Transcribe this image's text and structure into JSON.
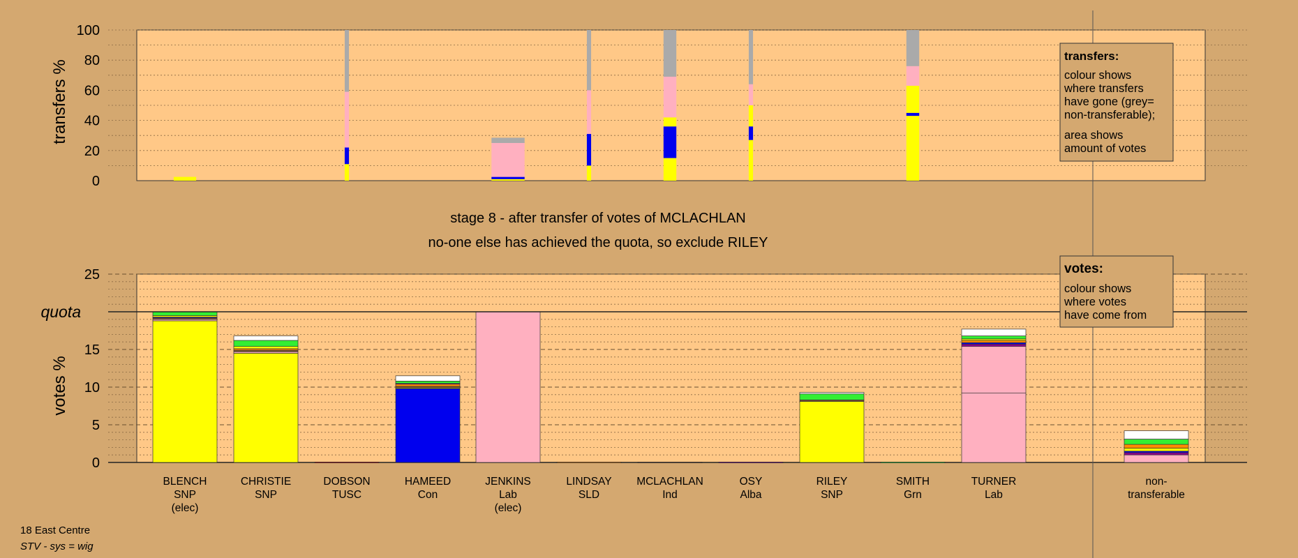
{
  "chart_data": {
    "type": "bar",
    "title": "stage 8 - after transfer of votes of MCLACHLAN",
    "subtitle": "no-one else has achieved the quota, so exclude RILEY",
    "candidates": [
      {
        "name": "BLENCH",
        "party": "SNP",
        "note": "(elec)"
      },
      {
        "name": "CHRISTIE",
        "party": "SNP",
        "note": ""
      },
      {
        "name": "DOBSON",
        "party": "TUSC",
        "note": ""
      },
      {
        "name": "HAMEED",
        "party": "Con",
        "note": ""
      },
      {
        "name": "JENKINS",
        "party": "Lab",
        "note": "(elec)"
      },
      {
        "name": "LINDSAY",
        "party": "SLD",
        "note": ""
      },
      {
        "name": "MCLACHLAN",
        "party": "Ind",
        "note": ""
      },
      {
        "name": "OSY",
        "party": "Alba",
        "note": ""
      },
      {
        "name": "RILEY",
        "party": "SNP",
        "note": ""
      },
      {
        "name": "SMITH",
        "party": "Grn",
        "note": ""
      },
      {
        "name": "TURNER",
        "party": "Lab",
        "note": ""
      }
    ],
    "nontransferable_label": [
      "non-",
      "transferable"
    ],
    "colors": {
      "SNP": "#ffff00",
      "Con": "#0000ee",
      "Lab": "#ffb0c0",
      "Grn": "#33ee33",
      "SLD": "#ff8c00",
      "Ind": "#7a5230",
      "Alba": "#8b008b",
      "TUSC": "#cc0000",
      "nontransferable": "#aaaaaa",
      "other": "#ffffff"
    },
    "transfers_panel": {
      "ylabel": "transfers %",
      "ylim": [
        0,
        100
      ],
      "ticks": [
        0,
        20,
        40,
        60,
        80,
        100
      ],
      "bars": [
        {
          "candidate": 0,
          "width_pct": 2.1,
          "segments": [
            {
              "party": "SNP",
              "value": 2.5
            }
          ]
        },
        {
          "candidate": 2,
          "width_pct": 0.4,
          "segments": [
            {
              "party": "SNP",
              "value": 11
            },
            {
              "party": "Con",
              "value": 11
            },
            {
              "party": "Lab",
              "value": 37
            },
            {
              "party": "nontransferable",
              "value": 41
            }
          ]
        },
        {
          "candidate": 4,
          "width_pct": 3.1,
          "segments": [
            {
              "party": "SNP",
              "value": 1
            },
            {
              "party": "Con",
              "value": 1.5
            },
            {
              "party": "Lab",
              "value": 22.5
            },
            {
              "party": "nontransferable",
              "value": 3.5
            }
          ]
        },
        {
          "candidate": 5,
          "width_pct": 0.4,
          "segments": [
            {
              "party": "SNP",
              "value": 10
            },
            {
              "party": "Con",
              "value": 21
            },
            {
              "party": "Lab",
              "value": 29
            },
            {
              "party": "nontransferable",
              "value": 40
            }
          ]
        },
        {
          "candidate": 6,
          "width_pct": 1.2,
          "segments": [
            {
              "party": "SNP",
              "value": 15
            },
            {
              "party": "Con",
              "value": 21
            },
            {
              "party": "SNP",
              "value": 6
            },
            {
              "party": "Lab",
              "value": 27
            },
            {
              "party": "nontransferable",
              "value": 31
            }
          ]
        },
        {
          "candidate": 7,
          "width_pct": 0.4,
          "segments": [
            {
              "party": "SNP",
              "value": 27
            },
            {
              "party": "Con",
              "value": 9
            },
            {
              "party": "SNP",
              "value": 14
            },
            {
              "party": "Lab",
              "value": 14
            },
            {
              "party": "nontransferable",
              "value": 36
            }
          ]
        },
        {
          "candidate": 9,
          "width_pct": 1.2,
          "segments": [
            {
              "party": "SNP",
              "value": 43
            },
            {
              "party": "Con",
              "value": 2
            },
            {
              "party": "SNP",
              "value": 18
            },
            {
              "party": "Lab",
              "value": 13
            },
            {
              "party": "nontransferable",
              "value": 24
            }
          ]
        }
      ]
    },
    "votes_panel": {
      "ylabel": "votes %",
      "ylim": [
        0,
        25
      ],
      "ticks": [
        0,
        5,
        10,
        15,
        20,
        25
      ],
      "quota": 20,
      "quota_label": "quota",
      "bars": [
        {
          "candidate": 0,
          "segments": [
            {
              "party": "SNP",
              "value": 18.8
            },
            {
              "party": "Lab",
              "value": 0.2
            },
            {
              "party": "Ind",
              "value": 0.2
            },
            {
              "party": "Con",
              "value": 0.1
            },
            {
              "party": "SNP",
              "value": 0.2
            },
            {
              "party": "Grn",
              "value": 0.5
            }
          ]
        },
        {
          "candidate": 1,
          "segments": [
            {
              "party": "SNP",
              "value": 14.5
            },
            {
              "party": "Lab",
              "value": 0.2
            },
            {
              "party": "Ind",
              "value": 0.2
            },
            {
              "party": "SLD",
              "value": 0.2
            },
            {
              "party": "SNP",
              "value": 0.3
            },
            {
              "party": "Grn",
              "value": 0.8
            },
            {
              "party": "other",
              "value": 0.6
            }
          ]
        },
        {
          "candidate": 2,
          "segments": [
            {
              "party": "TUSC",
              "value": 0.05
            }
          ]
        },
        {
          "candidate": 3,
          "segments": [
            {
              "party": "Con",
              "value": 9.8
            },
            {
              "party": "SNP",
              "value": 0.1
            },
            {
              "party": "Ind",
              "value": 0.2
            },
            {
              "party": "SLD",
              "value": 0.3
            },
            {
              "party": "Alba",
              "value": 0.1
            },
            {
              "party": "Grn",
              "value": 0.3
            },
            {
              "party": "other",
              "value": 0.7
            }
          ]
        },
        {
          "candidate": 4,
          "segments": [
            {
              "party": "Lab",
              "value": 20
            }
          ]
        },
        {
          "candidate": 5,
          "segments": [
            {
              "party": "SLD",
              "value": 0.05
            }
          ]
        },
        {
          "candidate": 6,
          "segments": [
            {
              "party": "Ind",
              "value": 0.05
            }
          ]
        },
        {
          "candidate": 7,
          "segments": [
            {
              "party": "Alba",
              "value": 0.05
            }
          ]
        },
        {
          "candidate": 8,
          "segments": [
            {
              "party": "SNP",
              "value": 8.1
            },
            {
              "party": "Ind",
              "value": 0.2
            },
            {
              "party": "Grn",
              "value": 0.8
            },
            {
              "party": "other",
              "value": 0.2
            }
          ]
        },
        {
          "candidate": 9,
          "segments": [
            {
              "party": "Grn",
              "value": 0.05
            }
          ]
        },
        {
          "candidate": 10,
          "segments": [
            {
              "party": "Lab",
              "value": 9.2
            },
            {
              "party": "Lab",
              "value": 6.2
            },
            {
              "party": "Alba",
              "value": 0.3
            },
            {
              "party": "Con",
              "value": 0.2
            },
            {
              "party": "SLD",
              "value": 0.3
            },
            {
              "party": "SNP",
              "value": 0.2
            },
            {
              "party": "Grn",
              "value": 0.4
            },
            {
              "party": "other",
              "value": 0.9
            }
          ]
        },
        {
          "candidate": "nontransferable",
          "segments": [
            {
              "party": "Lab",
              "value": 1.0
            },
            {
              "party": "Alba",
              "value": 0.3
            },
            {
              "party": "Con",
              "value": 0.2
            },
            {
              "party": "SNP",
              "value": 0.4
            },
            {
              "party": "SLD",
              "value": 0.5
            },
            {
              "party": "Grn",
              "value": 0.7
            },
            {
              "party": "other",
              "value": 1.1
            }
          ]
        }
      ]
    },
    "legend_transfers": {
      "title": "transfers:",
      "lines": [
        "colour shows",
        "where transfers",
        "have gone (grey=",
        "non-transferable);",
        "area shows",
        "amount of votes"
      ]
    },
    "legend_votes": {
      "title": "votes:",
      "lines": [
        "colour shows",
        "where votes",
        "have come from"
      ]
    }
  },
  "footer": {
    "ward": "18 East Centre",
    "system": "STV - sys = wig"
  }
}
